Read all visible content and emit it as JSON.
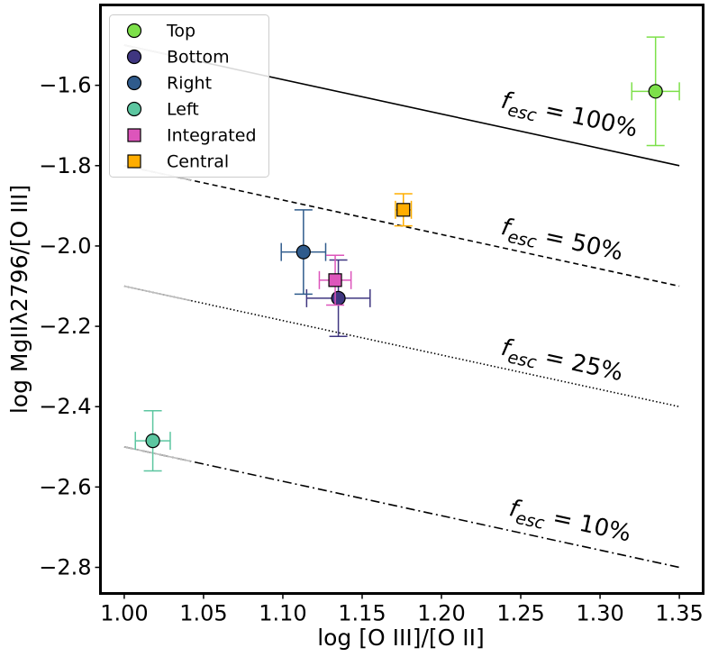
{
  "chart_data": {
    "type": "scatter",
    "title": "",
    "xlabel": "log [O III]/[O II]",
    "ylabel": "log MgIIλ2796/[O III]",
    "xlim": [
      0.985,
      1.365
    ],
    "ylim": [
      -2.865,
      -1.4
    ],
    "xticks": [
      1.0,
      1.05,
      1.1,
      1.15,
      1.2,
      1.25,
      1.3,
      1.35
    ],
    "xtick_labels": [
      "1.00",
      "1.05",
      "1.10",
      "1.15",
      "1.20",
      "1.25",
      "1.30",
      "1.35"
    ],
    "yticks": [
      -2.8,
      -2.6,
      -2.4,
      -2.2,
      -2.0,
      -1.8,
      -1.6
    ],
    "ytick_labels": [
      "−2.8",
      "−2.6",
      "−2.4",
      "−2.2",
      "−2.0",
      "−1.8",
      "−1.6"
    ],
    "grid": false,
    "legend_position": "top-left",
    "lines": [
      {
        "label_prefix": "f",
        "label_sub": "esc",
        "label_suffix": " = 100%",
        "x": [
          1.0,
          1.35
        ],
        "y": [
          -1.5,
          -1.8
        ],
        "style": "solid",
        "label_pos": [
          1.237,
          -1.655
        ]
      },
      {
        "label_prefix": "f",
        "label_sub": "esc",
        "label_suffix": " = 50%",
        "x": [
          1.0,
          1.35
        ],
        "y": [
          -1.8,
          -2.1
        ],
        "style": "dashed",
        "label_pos": [
          1.237,
          -1.97
        ]
      },
      {
        "label_prefix": "f",
        "label_sub": "esc",
        "label_suffix": " = 25%",
        "x": [
          1.0,
          1.35
        ],
        "y": [
          -2.1,
          -2.4
        ],
        "style": "dotted",
        "label_pos": [
          1.237,
          -2.27
        ]
      },
      {
        "label_prefix": "f",
        "label_sub": "esc",
        "label_suffix": " = 10%",
        "x": [
          1.0,
          1.35
        ],
        "y": [
          -2.5,
          -2.8
        ],
        "style": "dashdot",
        "label_pos": [
          1.242,
          -2.67
        ]
      }
    ],
    "series": [
      {
        "name": "Top",
        "marker": "circle",
        "color": "#7de04a",
        "edge": "#000000",
        "err_color": "#7de04a",
        "x": 1.335,
        "y": -1.615,
        "xerr": 0.015,
        "yerr": 0.135
      },
      {
        "name": "Bottom",
        "marker": "circle",
        "color": "#3f3680",
        "edge": "#000000",
        "err_color": "#3f3680",
        "x": 1.135,
        "y": -2.13,
        "xerr": 0.02,
        "yerr": 0.095
      },
      {
        "name": "Right",
        "marker": "circle",
        "color": "#2f5b8c",
        "edge": "#000000",
        "err_color": "#2f5b8c",
        "x": 1.113,
        "y": -2.015,
        "xerr": 0.014,
        "yerr": 0.105
      },
      {
        "name": "Left",
        "marker": "circle",
        "color": "#5cc6a0",
        "edge": "#000000",
        "err_color": "#5cc6a0",
        "x": 1.018,
        "y": -2.485,
        "xerr": 0.011,
        "yerr": 0.075
      },
      {
        "name": "Integrated",
        "marker": "square",
        "color": "#dd55bb",
        "edge": "#000000",
        "err_color": "#dd55bb",
        "x": 1.133,
        "y": -2.085,
        "xerr": 0.01,
        "yerr": 0.062
      },
      {
        "name": "Central",
        "marker": "square",
        "color": "#ffad00",
        "edge": "#000000",
        "err_color": "#ffad00",
        "x": 1.176,
        "y": -1.91,
        "xerr": 0.005,
        "yerr": 0.04
      }
    ]
  }
}
